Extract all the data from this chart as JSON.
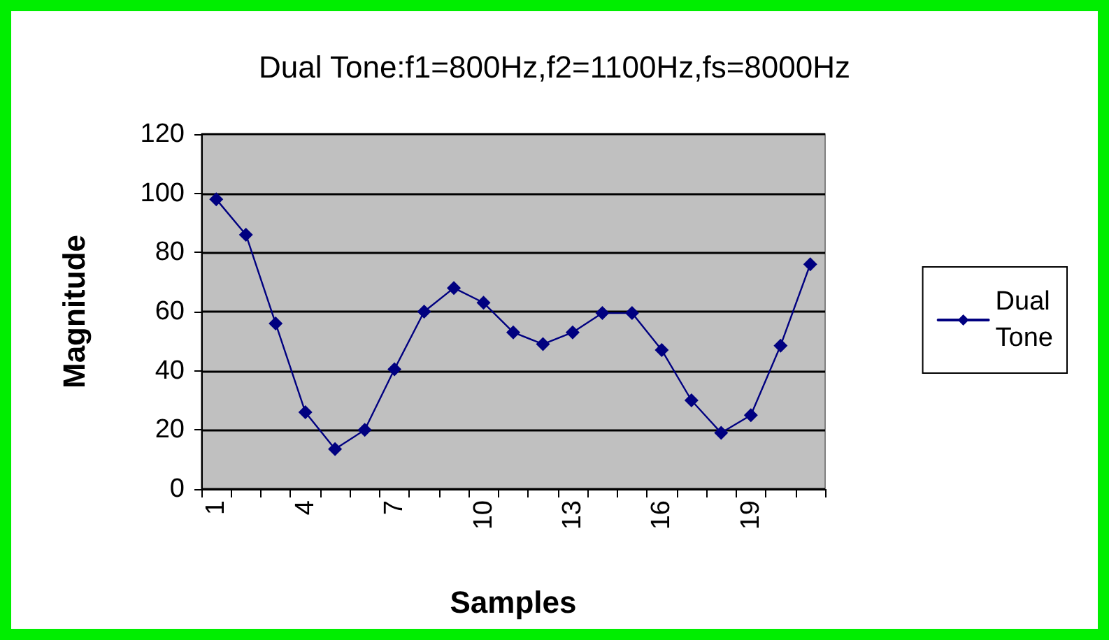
{
  "chart_data": {
    "type": "line",
    "title": "Dual Tone:f1=800Hz,f2=1100Hz,fs=8000Hz",
    "xlabel": "Samples",
    "ylabel": "Magnitude",
    "categories": [
      "1",
      null,
      null,
      "4",
      null,
      null,
      "7",
      null,
      null,
      "10",
      null,
      null,
      "13",
      null,
      null,
      "16",
      null,
      null,
      "19",
      null,
      null
    ],
    "series": [
      {
        "name": "Dual Tone",
        "color": "#000080",
        "values": [
          98,
          86,
          56,
          26,
          13.5,
          20,
          40.5,
          60,
          68,
          63,
          53,
          49,
          53,
          59.5,
          59.5,
          47,
          30,
          19,
          25,
          48.5,
          76
        ]
      }
    ],
    "ylim": [
      0,
      120
    ],
    "yticks": [
      0,
      20,
      40,
      60,
      80,
      100,
      120
    ],
    "grid": "y",
    "legend": "right",
    "marker": "diamond",
    "line_style": "solid"
  }
}
